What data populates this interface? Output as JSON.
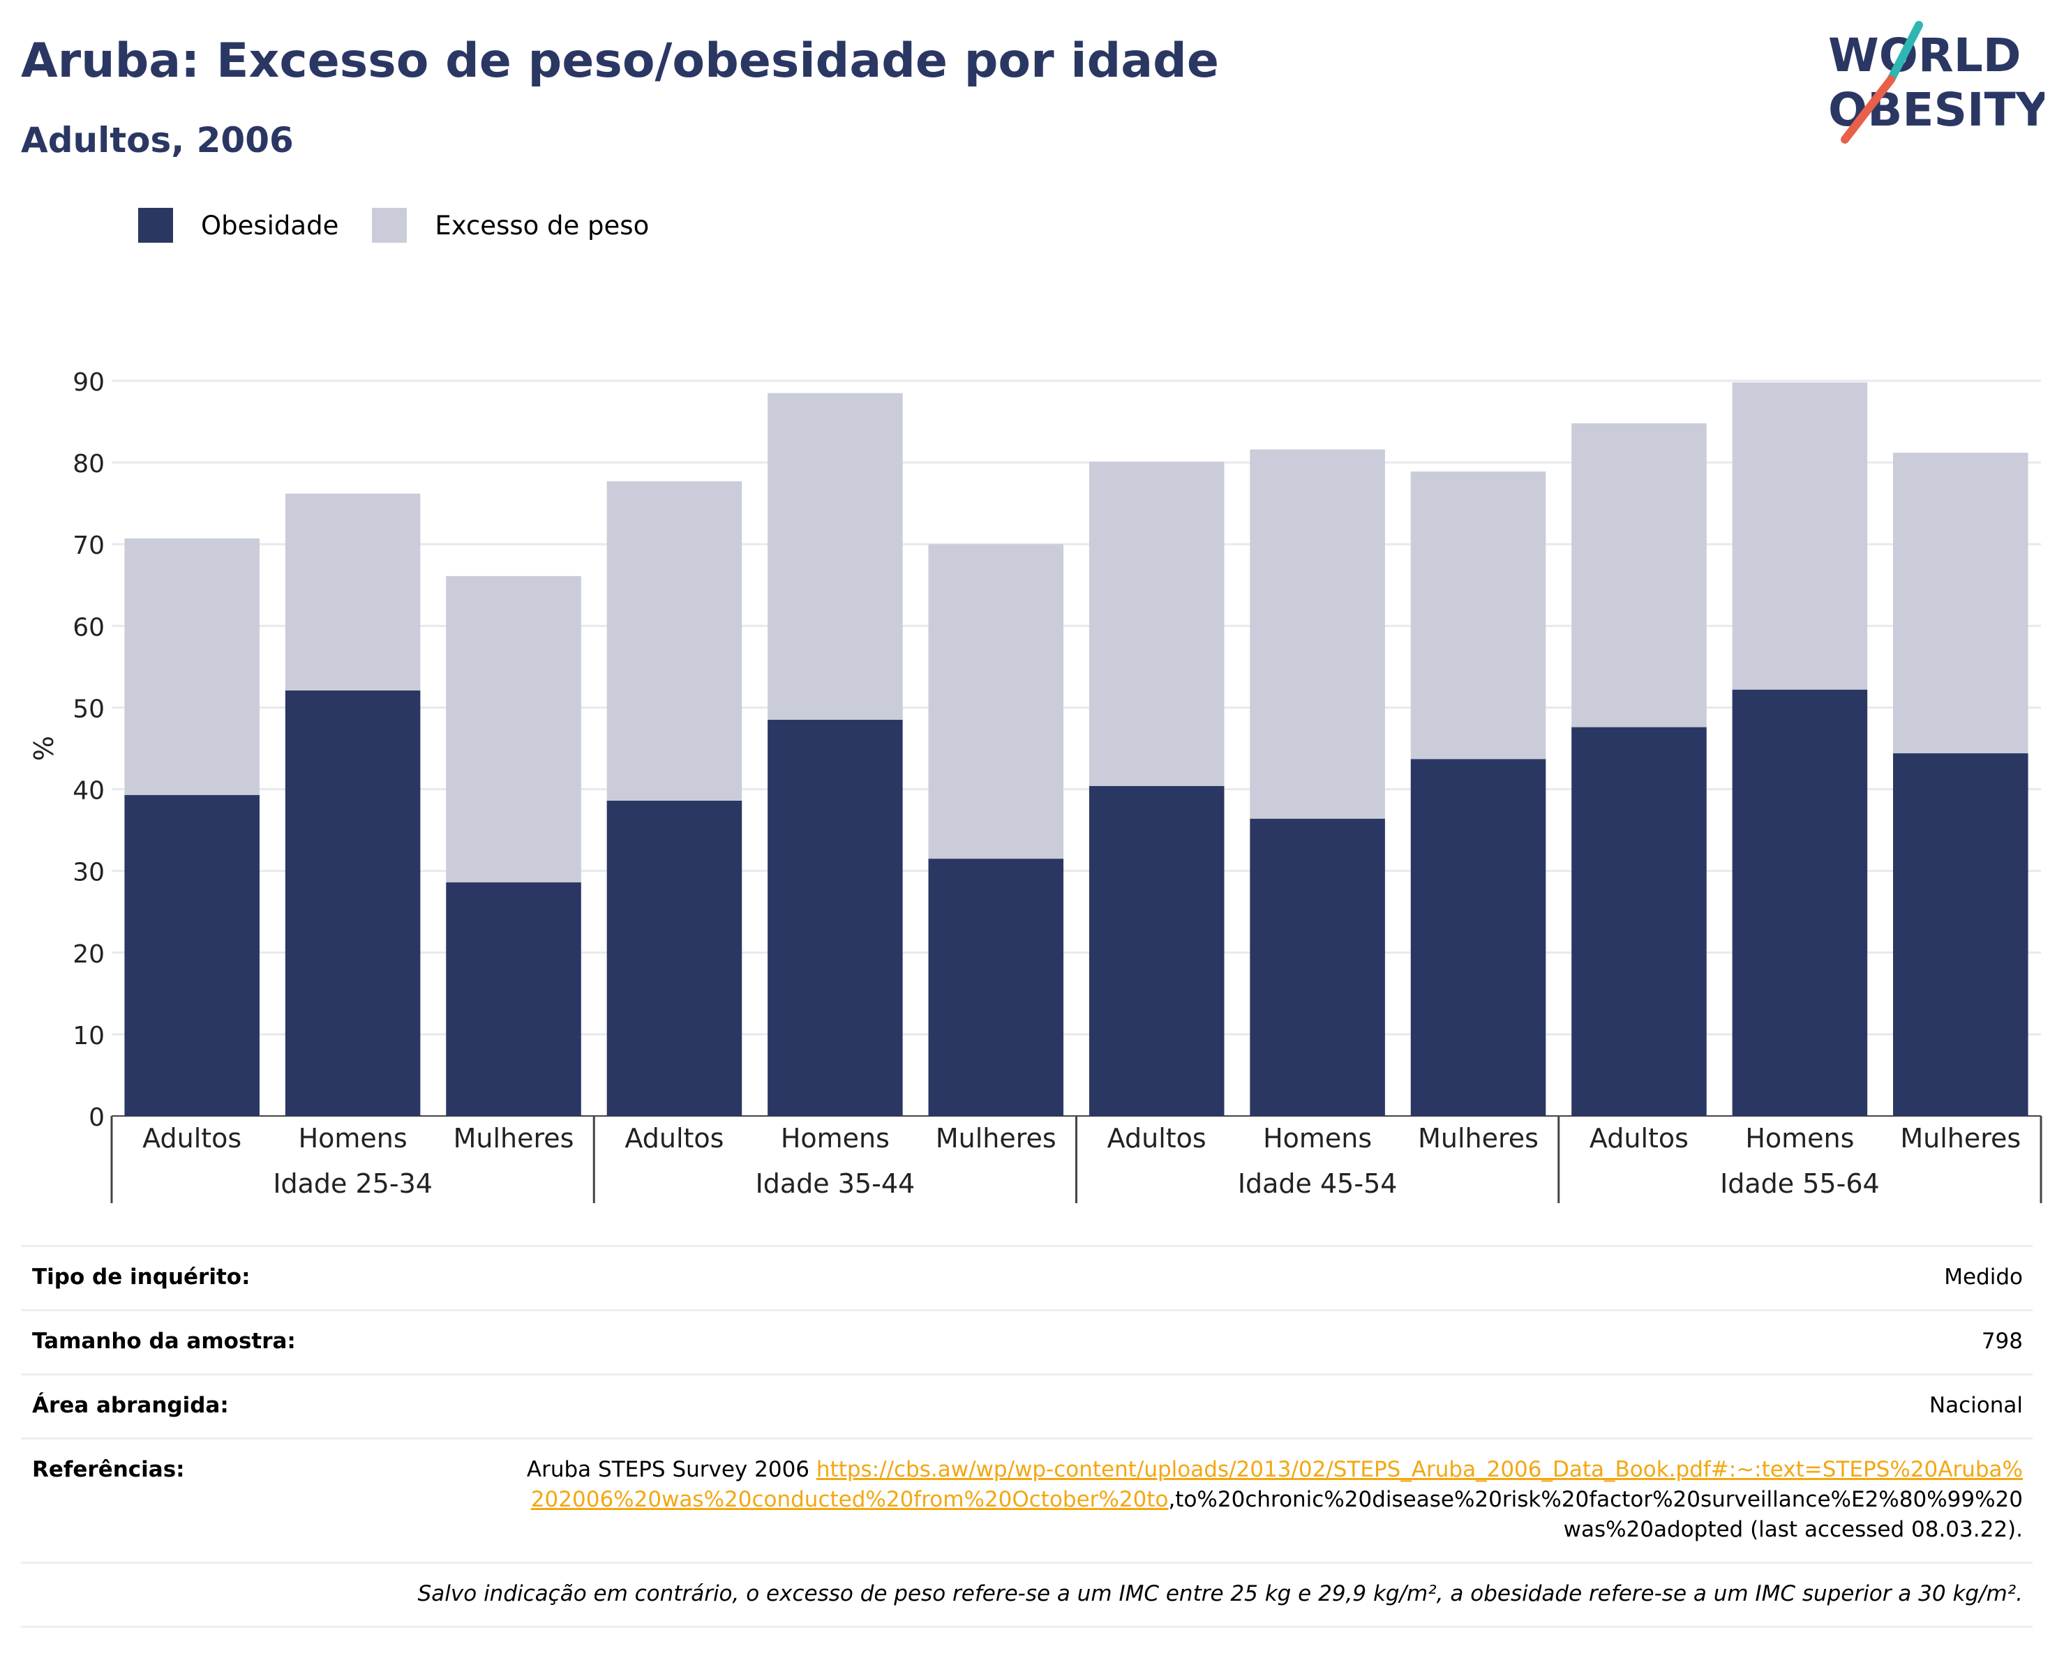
{
  "header": {
    "title": "Aruba: Excesso de peso/obesidade por idade",
    "subtitle": "Adultos, 2006"
  },
  "logo": {
    "line1": "WORLD",
    "line2": "OBESITY"
  },
  "colors": {
    "obesity": "#2b3763",
    "overweight": "#cacdd9",
    "accent": "#f3a712",
    "logo_teal": "#2fb6b3",
    "logo_coral": "#e8604a"
  },
  "legend": {
    "obesity": "Obesidade",
    "overweight": "Excesso de peso"
  },
  "chart_data": {
    "type": "bar",
    "stacked": true,
    "ylabel": "%",
    "ylim": [
      0,
      90
    ],
    "yticks": [
      0,
      10,
      20,
      30,
      40,
      50,
      60,
      70,
      80,
      90
    ],
    "grid": true,
    "legend_position": "top-left",
    "groups": [
      {
        "label": "Idade 25-34",
        "categories": [
          "Adultos",
          "Homens",
          "Mulheres"
        ]
      },
      {
        "label": "Idade 35-44",
        "categories": [
          "Adultos",
          "Homens",
          "Mulheres"
        ]
      },
      {
        "label": "Idade 45-54",
        "categories": [
          "Adultos",
          "Homens",
          "Mulheres"
        ]
      },
      {
        "label": "Idade 55-64",
        "categories": [
          "Adultos",
          "Homens",
          "Mulheres"
        ]
      }
    ],
    "series": [
      {
        "name": "Obesidade",
        "values": [
          39.3,
          52.1,
          28.6,
          38.6,
          48.5,
          31.5,
          40.4,
          36.4,
          43.7,
          47.6,
          52.2,
          44.4
        ]
      },
      {
        "name": "Excesso de peso",
        "values": [
          31.4,
          24.1,
          37.5,
          39.1,
          40.0,
          38.5,
          39.7,
          45.2,
          35.2,
          37.2,
          37.6,
          36.8
        ]
      }
    ]
  },
  "info": {
    "survey_type": {
      "label": "Tipo de inquérito:",
      "value": "Medido"
    },
    "sample_size": {
      "label": "Tamanho da amostra:",
      "value": "798"
    },
    "coverage": {
      "label": "Área abrangida:",
      "value": "Nacional"
    },
    "references": {
      "label": "Referências:",
      "text": "Aruba STEPS Survey 2006 ",
      "link": "https://cbs.aw/wp/wp-content/uploads/2013/02/STEPS_Aruba_2006_Data_Book.pdf#:~:text=STEPS%20Aruba%202006%20was%20conducted%20from%20October%20to",
      "tail": ",to%20chronic%20disease%20risk%20factor%20surveillance%E2%80%99%20was%20adopted (last accessed 08.03.22)."
    },
    "note": "Salvo indicação em contrário, o excesso de peso refere-se a um IMC entre 25 kg e 29,9 kg/m², a obesidade refere-se a um IMC superior a 30 kg/m²."
  }
}
